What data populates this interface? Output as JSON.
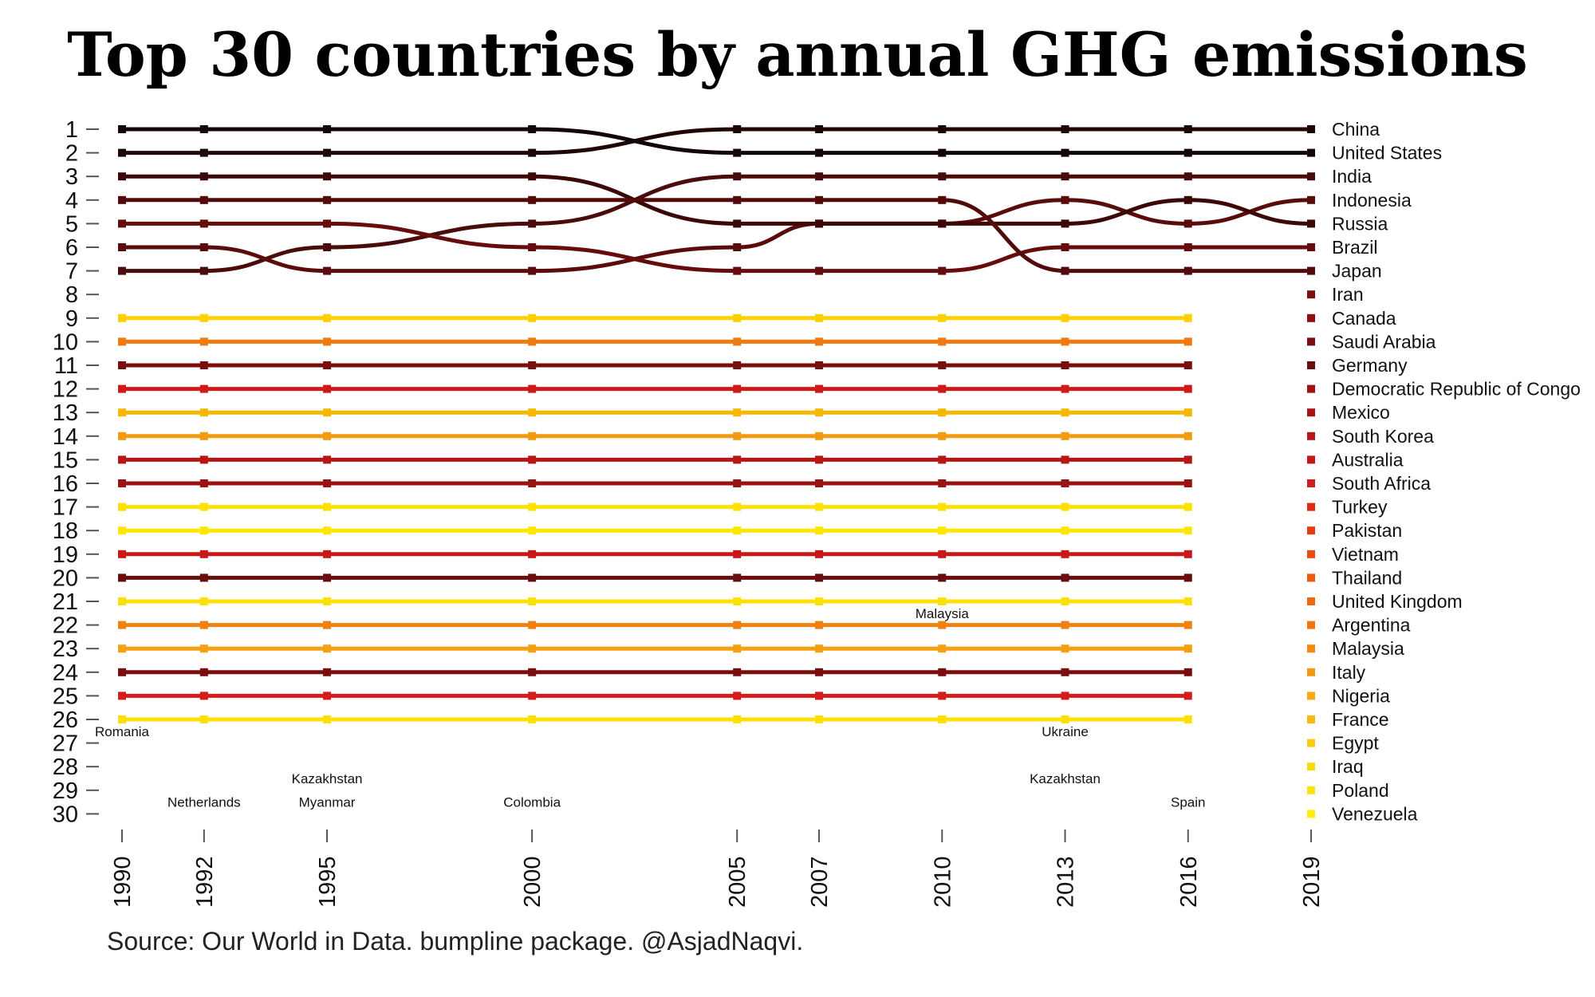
{
  "title": "Top 30 countries by annual GHG emissions",
  "source": "Source: Our World in Data. bumpline package. @AsjadNaqvi.",
  "chart_data": {
    "type": "line",
    "title": "Top 30 countries by annual GHG emissions",
    "xlabel": "",
    "ylabel": "",
    "x": [
      1990,
      1992,
      1995,
      2000,
      2005,
      2007,
      2010,
      2013,
      2016,
      2019
    ],
    "y_ticks": [
      "1",
      "2",
      "3",
      "4",
      "5",
      "6",
      "7",
      "8",
      "9",
      "10",
      "11",
      "12",
      "13",
      "14",
      "15",
      "16",
      "17",
      "18",
      "19",
      "20",
      "21",
      "22",
      "23",
      "24",
      "25",
      "26",
      "27",
      "28",
      "29",
      "30"
    ],
    "y_axis": "rank, 1 at top",
    "grid": false,
    "legend": "none",
    "series": [
      {
        "name": "China",
        "color": "#1e0606",
        "ranks": [
          2,
          2,
          2,
          2,
          1,
          1,
          1,
          1,
          1,
          1
        ]
      },
      {
        "name": "United States",
        "color": "#120606",
        "ranks": [
          1,
          1,
          1,
          1,
          2,
          2,
          2,
          2,
          2,
          2
        ]
      },
      {
        "name": "India",
        "color": "#4a0b0b",
        "ranks": [
          7,
          7,
          6,
          5,
          3,
          3,
          3,
          3,
          3,
          3
        ]
      },
      {
        "name": "Indonesia",
        "color": "#5a0c0c",
        "ranks": [
          6,
          6,
          7,
          7,
          6,
          5,
          5,
          4,
          5,
          4
        ]
      },
      {
        "name": "Russia",
        "color": "#3c0707",
        "ranks": [
          3,
          3,
          3,
          3,
          5,
          5,
          5,
          5,
          4,
          5
        ]
      },
      {
        "name": "Brazil",
        "color": "#660c0c",
        "ranks": [
          5,
          5,
          5,
          6,
          7,
          7,
          7,
          6,
          6,
          6
        ]
      },
      {
        "name": "Japan",
        "color": "#520a0a",
        "ranks": [
          4,
          4,
          4,
          4,
          4,
          4,
          4,
          7,
          7,
          7
        ]
      },
      {
        "name": "Iran",
        "color": "#7a0d0d",
        "ranks": [
          null,
          null,
          null,
          null,
          null,
          null,
          null,
          null,
          null,
          8
        ]
      },
      {
        "name": "Canada",
        "color": "#8e1010",
        "ranks": [
          null,
          null,
          null,
          null,
          null,
          null,
          null,
          null,
          null,
          9
        ]
      },
      {
        "name": "Saudi Arabia",
        "color": "#7c0f0f",
        "ranks": [
          null,
          null,
          null,
          null,
          null,
          null,
          null,
          null,
          null,
          10
        ]
      },
      {
        "name": "Germany",
        "color": "#6a0d0d",
        "ranks": [
          null,
          null,
          null,
          null,
          null,
          null,
          null,
          null,
          null,
          11
        ]
      },
      {
        "name": "Democratic Republic of Congo",
        "color": "#a01212",
        "ranks": [
          null,
          null,
          null,
          null,
          null,
          null,
          null,
          null,
          null,
          12
        ]
      },
      {
        "name": "Mexico",
        "color": "#a81414",
        "ranks": [
          null,
          null,
          null,
          null,
          null,
          null,
          null,
          null,
          null,
          13
        ]
      },
      {
        "name": "South Korea",
        "color": "#b81616",
        "ranks": [
          null,
          null,
          null,
          null,
          null,
          null,
          null,
          null,
          null,
          14
        ]
      },
      {
        "name": "Australia",
        "color": "#c41818",
        "ranks": [
          null,
          null,
          null,
          null,
          null,
          null,
          null,
          null,
          null,
          15
        ]
      },
      {
        "name": "South Africa",
        "color": "#d41c1c",
        "ranks": [
          null,
          null,
          null,
          null,
          null,
          null,
          null,
          null,
          null,
          16
        ]
      },
      {
        "name": "Turkey",
        "color": "#e02a14",
        "ranks": [
          null,
          null,
          null,
          null,
          null,
          null,
          null,
          null,
          null,
          17
        ]
      },
      {
        "name": "Pakistan",
        "color": "#e63a12",
        "ranks": [
          null,
          null,
          null,
          null,
          null,
          null,
          null,
          null,
          null,
          18
        ]
      },
      {
        "name": "Vietnam",
        "color": "#e84a10",
        "ranks": [
          null,
          null,
          null,
          null,
          null,
          null,
          null,
          null,
          null,
          19
        ]
      },
      {
        "name": "Thailand",
        "color": "#ec5a10",
        "ranks": [
          null,
          null,
          null,
          null,
          null,
          null,
          null,
          null,
          null,
          20
        ]
      },
      {
        "name": "United Kingdom",
        "color": "#ee6a10",
        "ranks": [
          null,
          null,
          null,
          null,
          null,
          null,
          null,
          null,
          null,
          21
        ]
      },
      {
        "name": "Argentina",
        "color": "#f07810",
        "ranks": [
          null,
          null,
          null,
          null,
          null,
          null,
          null,
          null,
          null,
          22
        ]
      },
      {
        "name": "Malaysia",
        "color": "#f28a10",
        "ranks": [
          null,
          null,
          null,
          null,
          null,
          null,
          null,
          null,
          null,
          23
        ]
      },
      {
        "name": "Italy",
        "color": "#f49a10",
        "ranks": [
          null,
          null,
          null,
          null,
          null,
          null,
          null,
          null,
          null,
          24
        ]
      },
      {
        "name": "Nigeria",
        "color": "#f6aa10",
        "ranks": [
          null,
          null,
          null,
          null,
          null,
          null,
          null,
          null,
          null,
          25
        ]
      },
      {
        "name": "France",
        "color": "#f8ba10",
        "ranks": [
          null,
          null,
          null,
          null,
          null,
          null,
          null,
          null,
          null,
          26
        ]
      },
      {
        "name": "Egypt",
        "color": "#facc10",
        "ranks": [
          null,
          null,
          null,
          null,
          null,
          null,
          null,
          null,
          null,
          27
        ]
      },
      {
        "name": "Iraq",
        "color": "#fcd810",
        "ranks": [
          null,
          null,
          null,
          null,
          null,
          null,
          null,
          null,
          null,
          28
        ]
      },
      {
        "name": "Poland",
        "color": "#fde410",
        "ranks": [
          null,
          null,
          null,
          null,
          null,
          null,
          null,
          null,
          null,
          29
        ]
      },
      {
        "name": "Venezuela",
        "color": "#ffee10",
        "ranks": [
          null,
          null,
          null,
          null,
          null,
          null,
          null,
          null,
          null,
          30
        ]
      }
    ],
    "other_lines": [
      {
        "ranks": [
          9,
          9,
          9,
          9,
          9,
          9,
          9,
          9,
          9,
          null
        ],
        "color": "#ffd000"
      },
      {
        "ranks": [
          10,
          10,
          10,
          10,
          10,
          10,
          10,
          10,
          10,
          null
        ],
        "color": "#f07a10"
      },
      {
        "ranks": [
          11,
          11,
          11,
          11,
          11,
          11,
          11,
          11,
          11,
          null
        ],
        "color": "#7a0e0e"
      },
      {
        "ranks": [
          12,
          12,
          12,
          12,
          12,
          12,
          12,
          12,
          12,
          null
        ],
        "color": "#d01a1a"
      },
      {
        "ranks": [
          13,
          13,
          13,
          13,
          13,
          13,
          13,
          13,
          13,
          null
        ],
        "color": "#f5b800"
      },
      {
        "ranks": [
          14,
          14,
          14,
          14,
          14,
          14,
          14,
          14,
          14,
          null
        ],
        "color": "#f29a10"
      },
      {
        "ranks": [
          15,
          15,
          15,
          15,
          15,
          15,
          15,
          15,
          15,
          null
        ],
        "color": "#b81616"
      },
      {
        "ranks": [
          16,
          16,
          16,
          16,
          16,
          16,
          16,
          16,
          16,
          null
        ],
        "color": "#9a1212"
      },
      {
        "ranks": [
          17,
          17,
          17,
          17,
          17,
          17,
          17,
          17,
          17,
          null
        ],
        "color": "#ffe100"
      },
      {
        "ranks": [
          18,
          18,
          18,
          18,
          18,
          18,
          18,
          18,
          18,
          null
        ],
        "color": "#ffe600"
      },
      {
        "ranks": [
          19,
          19,
          19,
          19,
          19,
          19,
          19,
          19,
          19,
          null
        ],
        "color": "#c81818"
      },
      {
        "ranks": [
          20,
          20,
          20,
          20,
          20,
          20,
          20,
          20,
          20,
          null
        ],
        "color": "#6a0d0d"
      },
      {
        "ranks": [
          21,
          21,
          21,
          21,
          21,
          21,
          21,
          21,
          21,
          null
        ],
        "color": "#ffe000"
      },
      {
        "ranks": [
          22,
          22,
          22,
          22,
          22,
          22,
          22,
          22,
          22,
          null
        ],
        "color": "#f08010"
      },
      {
        "ranks": [
          23,
          23,
          23,
          23,
          23,
          23,
          23,
          23,
          23,
          null
        ],
        "color": "#f5a010"
      },
      {
        "ranks": [
          24,
          24,
          24,
          24,
          24,
          24,
          24,
          24,
          24,
          null
        ],
        "color": "#7a0e0e"
      },
      {
        "ranks": [
          25,
          25,
          25,
          25,
          25,
          25,
          25,
          25,
          25,
          null
        ],
        "color": "#d41c1c"
      },
      {
        "ranks": [
          26,
          26,
          26,
          26,
          26,
          26,
          26,
          26,
          26,
          null
        ],
        "color": "#ffe000"
      }
    ],
    "annotations": [
      {
        "text": "Romania",
        "x": 1990,
        "rank": 26.5
      },
      {
        "text": "Netherlands",
        "x": 1992,
        "rank": 29.5
      },
      {
        "text": "Kazakhstan",
        "x": 1995,
        "rank": 28.5
      },
      {
        "text": "Myanmar",
        "x": 1995,
        "rank": 29.5
      },
      {
        "text": "Colombia",
        "x": 2000,
        "rank": 29.5
      },
      {
        "text": "Malaysia",
        "x": 2010,
        "rank": 21.5
      },
      {
        "text": "Ukraine",
        "x": 2013,
        "rank": 26.5
      },
      {
        "text": "Kazakhstan",
        "x": 2013,
        "rank": 28.5
      },
      {
        "text": "Spain",
        "x": 2016,
        "rank": 29.5
      }
    ]
  }
}
